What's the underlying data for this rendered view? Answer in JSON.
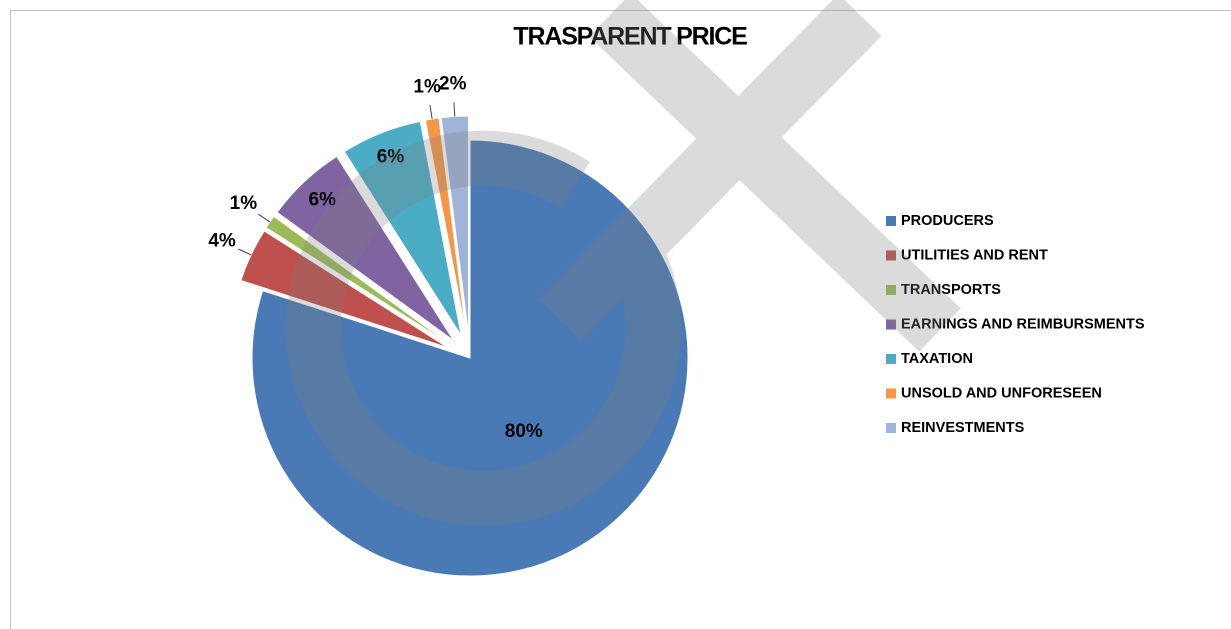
{
  "chart_data": {
    "type": "pie",
    "title": "TRASPARENT PRICE",
    "categories": [
      "PRODUCERS",
      "UTILITIES AND RENT",
      "TRANSPORTS",
      "EARNINGS AND REIMBURSMENTS",
      "TAXATION",
      "UNSOLD AND UNFORESEEN",
      "REINVESTMENTS"
    ],
    "values": [
      80,
      4,
      1,
      6,
      6,
      1,
      2
    ],
    "value_labels": [
      "80%",
      "4%",
      "1%",
      "6%",
      "6%",
      "1%",
      "2%"
    ],
    "colors": [
      "#4a7ab5",
      "#c0504d",
      "#9bbb59",
      "#8064a2",
      "#4bacc6",
      "#f79646",
      "#9fb4d8"
    ],
    "legend": "right"
  }
}
